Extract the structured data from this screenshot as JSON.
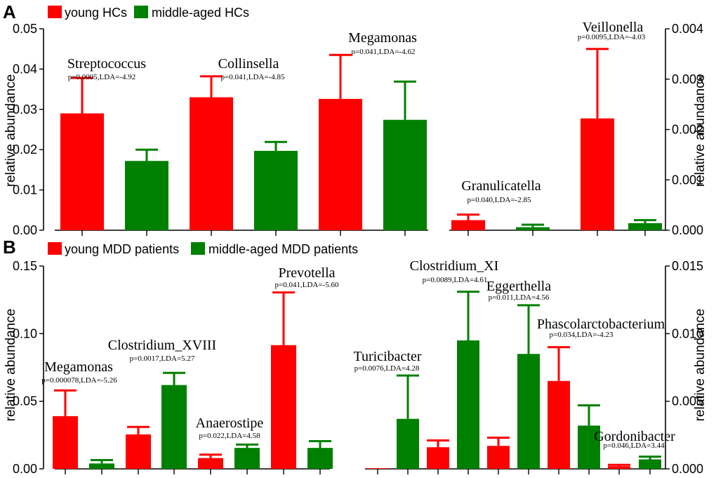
{
  "colors": {
    "young": "#ff0000",
    "middle": "#008000"
  },
  "chart_data": [
    {
      "type": "bar",
      "panel": "A",
      "legend": [
        "young HCs",
        "middle-aged HCs"
      ],
      "ylabel": "relative abundance",
      "ylim": [
        0,
        0.05
      ],
      "yticks": [
        "0.00",
        "0.01",
        "0.02",
        "0.03",
        "0.04",
        "0.05"
      ],
      "taxa": [
        {
          "name": "Streptococcus",
          "stat": "p=0.0005,LDA=-4.92",
          "young": 0.029,
          "young_err": 0.0088,
          "middle": 0.0172,
          "middle_err": 0.0028
        },
        {
          "name": "Collinsella",
          "stat": "p=0.041,LDA=-4.85",
          "young": 0.033,
          "young_err": 0.0052,
          "middle": 0.0197,
          "middle_err": 0.0022
        },
        {
          "name": "Megamonas",
          "stat": "p=0.041,LDA=-4.62",
          "young": 0.0326,
          "young_err": 0.0109,
          "middle": 0.0274,
          "middle_err": 0.0095
        }
      ]
    },
    {
      "type": "bar",
      "panel": "A",
      "ylabel": "relative abundance",
      "ylim": [
        0,
        0.004
      ],
      "yticks": [
        "0.000",
        "0.001",
        "0.002",
        "0.003",
        "0.004"
      ],
      "taxa": [
        {
          "name": "Granulicatella",
          "stat": "p=0.040,LDA=-2.85",
          "young": 0.0002,
          "young_err": 0.00011,
          "middle": 6e-05,
          "middle_err": 5e-05
        },
        {
          "name": "Veillonella",
          "stat": "p=0.0095,LDA=-4.03",
          "young": 0.00222,
          "young_err": 0.00138,
          "middle": 0.00014,
          "middle_err": 6e-05
        }
      ]
    },
    {
      "type": "bar",
      "panel": "B",
      "legend": [
        "young MDD patients",
        "middle-aged MDD patients"
      ],
      "ylabel": "relative abundance",
      "ylim": [
        0,
        0.15
      ],
      "yticks": [
        "0.00",
        "0.05",
        "0.10",
        "0.15"
      ],
      "taxa": [
        {
          "name": "Megamonas",
          "stat": "p=0.000078,LDA=-5.26",
          "young": 0.039,
          "young_err": 0.019,
          "middle": 0.004,
          "middle_err": 0.0025
        },
        {
          "name": "Clostridium_XVIII",
          "stat": "p=0.0017,LDA=5.27",
          "young": 0.0255,
          "young_err": 0.0055,
          "middle": 0.062,
          "middle_err": 0.009
        },
        {
          "name": "Anaerostipe",
          "stat": "p=0.022,LDA=4.58",
          "young": 0.008,
          "young_err": 0.0025,
          "middle": 0.0155,
          "middle_err": 0.0025
        },
        {
          "name": "Prevotella",
          "stat": "p=0.041,LDA=-5.60",
          "young": 0.0915,
          "young_err": 0.039,
          "middle": 0.0155,
          "middle_err": 0.005
        }
      ]
    },
    {
      "type": "bar",
      "panel": "B",
      "ylabel": "relative abundance",
      "ylim": [
        0,
        0.015
      ],
      "yticks": [
        "0.000",
        "0.005",
        "0.010",
        "0.015"
      ],
      "taxa": [
        {
          "name": "Turicibacter",
          "stat": "p=0.0076,LDA=4.28",
          "young": 5e-05,
          "young_err": 0,
          "middle": 0.0037,
          "middle_err": 0.0032
        },
        {
          "name": "Clostridium_XI",
          "stat": "p=0.0089,LDA=4.61",
          "young": 0.0016,
          "young_err": 0.0005,
          "middle": 0.0095,
          "middle_err": 0.0036
        },
        {
          "name": "Eggerthella",
          "stat": "p=0.011,LDA=4.56",
          "young": 0.0017,
          "young_err": 0.0006,
          "middle": 0.0085,
          "middle_err": 0.0036
        },
        {
          "name": "Phascolarctobacterium",
          "stat": "p=0.034,LDA=-4.23",
          "young": 0.0065,
          "young_err": 0.0025,
          "middle": 0.0032,
          "middle_err": 0.0015
        },
        {
          "name": "Gordonibacter",
          "stat": "p=0.046,LDA=3.44",
          "young": 0.0002,
          "young_err": 0.0001,
          "middle": 0.0007,
          "middle_err": 0.0002
        }
      ]
    }
  ]
}
